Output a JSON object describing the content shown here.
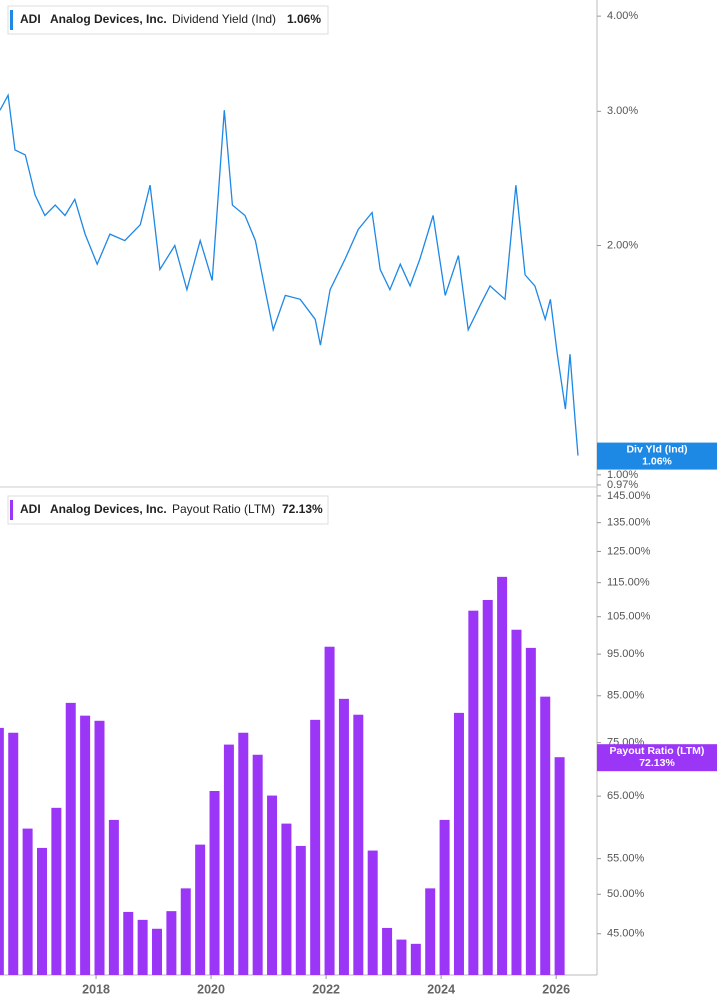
{
  "chart_data": [
    {
      "type": "line",
      "ticker": "ADI",
      "company": "Analog Devices, Inc.",
      "last_value_label": "1.06%",
      "marker_label": "Div Yld (Ind)",
      "log": true,
      "xlim": [
        2016.33,
        2026.71
      ],
      "ylim": [
        0.964,
        4.2
      ],
      "yticks": [
        {
          "value": 4,
          "label": "4.00%"
        },
        {
          "value": 3,
          "label": "3.00%"
        },
        {
          "value": 2,
          "label": "2.00%"
        },
        {
          "value": 1,
          "label": "1.00%"
        },
        {
          "value": 0.97,
          "label": "0.97%"
        }
      ],
      "x": [
        2016.33,
        2016.47,
        2016.59,
        2016.77,
        2016.94,
        2017.11,
        2017.29,
        2017.46,
        2017.63,
        2017.81,
        2018.02,
        2018.24,
        2018.5,
        2018.77,
        2018.94,
        2019.11,
        2019.37,
        2019.58,
        2019.81,
        2020.02,
        2020.23,
        2020.37,
        2020.59,
        2020.77,
        2020.94,
        2021.08,
        2021.29,
        2021.55,
        2021.81,
        2021.9,
        2022.07,
        2022.33,
        2022.56,
        2022.8,
        2022.94,
        2023.11,
        2023.29,
        2023.46,
        2023.63,
        2023.86,
        2024.07,
        2024.3,
        2024.47,
        2024.68,
        2024.85,
        2025.11,
        2025.3,
        2025.46,
        2025.63,
        2025.81,
        2025.9,
        2026.02,
        2026.16,
        2026.24,
        2026.33,
        2026.38
      ],
      "series": [
        {
          "name": "Dividend Yield (Ind)",
          "color": "#1e88e5",
          "values": [
            3.01,
            3.15,
            2.67,
            2.63,
            2.33,
            2.19,
            2.26,
            2.19,
            2.3,
            2.07,
            1.89,
            2.07,
            2.03,
            2.13,
            2.4,
            1.86,
            2.0,
            1.75,
            2.03,
            1.8,
            3.01,
            2.26,
            2.19,
            2.03,
            1.75,
            1.55,
            1.72,
            1.7,
            1.6,
            1.48,
            1.75,
            1.92,
            2.1,
            2.21,
            1.86,
            1.75,
            1.89,
            1.77,
            1.92,
            2.19,
            1.72,
            1.94,
            1.55,
            1.67,
            1.77,
            1.7,
            2.4,
            1.83,
            1.77,
            1.6,
            1.7,
            1.44,
            1.22,
            1.44,
            1.18,
            1.06
          ]
        }
      ]
    },
    {
      "type": "bar",
      "ticker": "ADI",
      "company": "Analog Devices, Inc.",
      "last_value_label": "72.13%",
      "marker_label": "Payout Ratio (LTM)",
      "log": true,
      "xlim": [
        2016.33,
        2026.71
      ],
      "ylim": [
        40.3,
        148.5
      ],
      "xticks": [
        2018,
        2020,
        2022,
        2024,
        2026
      ],
      "yticks": [
        {
          "value": 145,
          "label": "145.00%"
        },
        {
          "value": 135,
          "label": "135.00%"
        },
        {
          "value": 125,
          "label": "125.00%"
        },
        {
          "value": 115,
          "label": "115.00%"
        },
        {
          "value": 105,
          "label": "105.00%"
        },
        {
          "value": 95,
          "label": "95.00%"
        },
        {
          "value": 85,
          "label": "85.00%"
        },
        {
          "value": 75,
          "label": "75.00%"
        },
        {
          "value": 65,
          "label": "65.00%"
        },
        {
          "value": 55,
          "label": "55.00%"
        },
        {
          "value": 50,
          "label": "50.00%"
        },
        {
          "value": 45,
          "label": "45.00%"
        }
      ],
      "x": [
        2016.31,
        2016.56,
        2016.81,
        2017.06,
        2017.31,
        2017.56,
        2017.81,
        2018.06,
        2018.31,
        2018.56,
        2018.81,
        2019.06,
        2019.31,
        2019.56,
        2019.81,
        2020.06,
        2020.31,
        2020.56,
        2020.81,
        2021.06,
        2021.31,
        2021.56,
        2021.81,
        2022.06,
        2022.31,
        2022.56,
        2022.81,
        2023.06,
        2023.31,
        2023.56,
        2023.81,
        2024.06,
        2024.31,
        2024.56,
        2024.81,
        2025.06,
        2025.31,
        2025.56,
        2025.81,
        2026.06
      ],
      "series": [
        {
          "name": "Payout Ratio (LTM)",
          "color": "#9b36f7",
          "values": [
            78.0,
            77.0,
            59.6,
            56.6,
            63.0,
            83.4,
            80.6,
            79.5,
            61.0,
            47.7,
            46.7,
            45.6,
            47.8,
            50.8,
            57.1,
            65.9,
            74.6,
            77.0,
            72.6,
            65.1,
            60.4,
            56.9,
            79.7,
            96.9,
            84.3,
            80.8,
            56.2,
            45.7,
            44.3,
            43.8,
            50.8,
            61.0,
            81.2,
            106.7,
            109.8,
            116.8,
            101.4,
            96.6,
            84.8,
            72.13
          ]
        }
      ]
    }
  ]
}
